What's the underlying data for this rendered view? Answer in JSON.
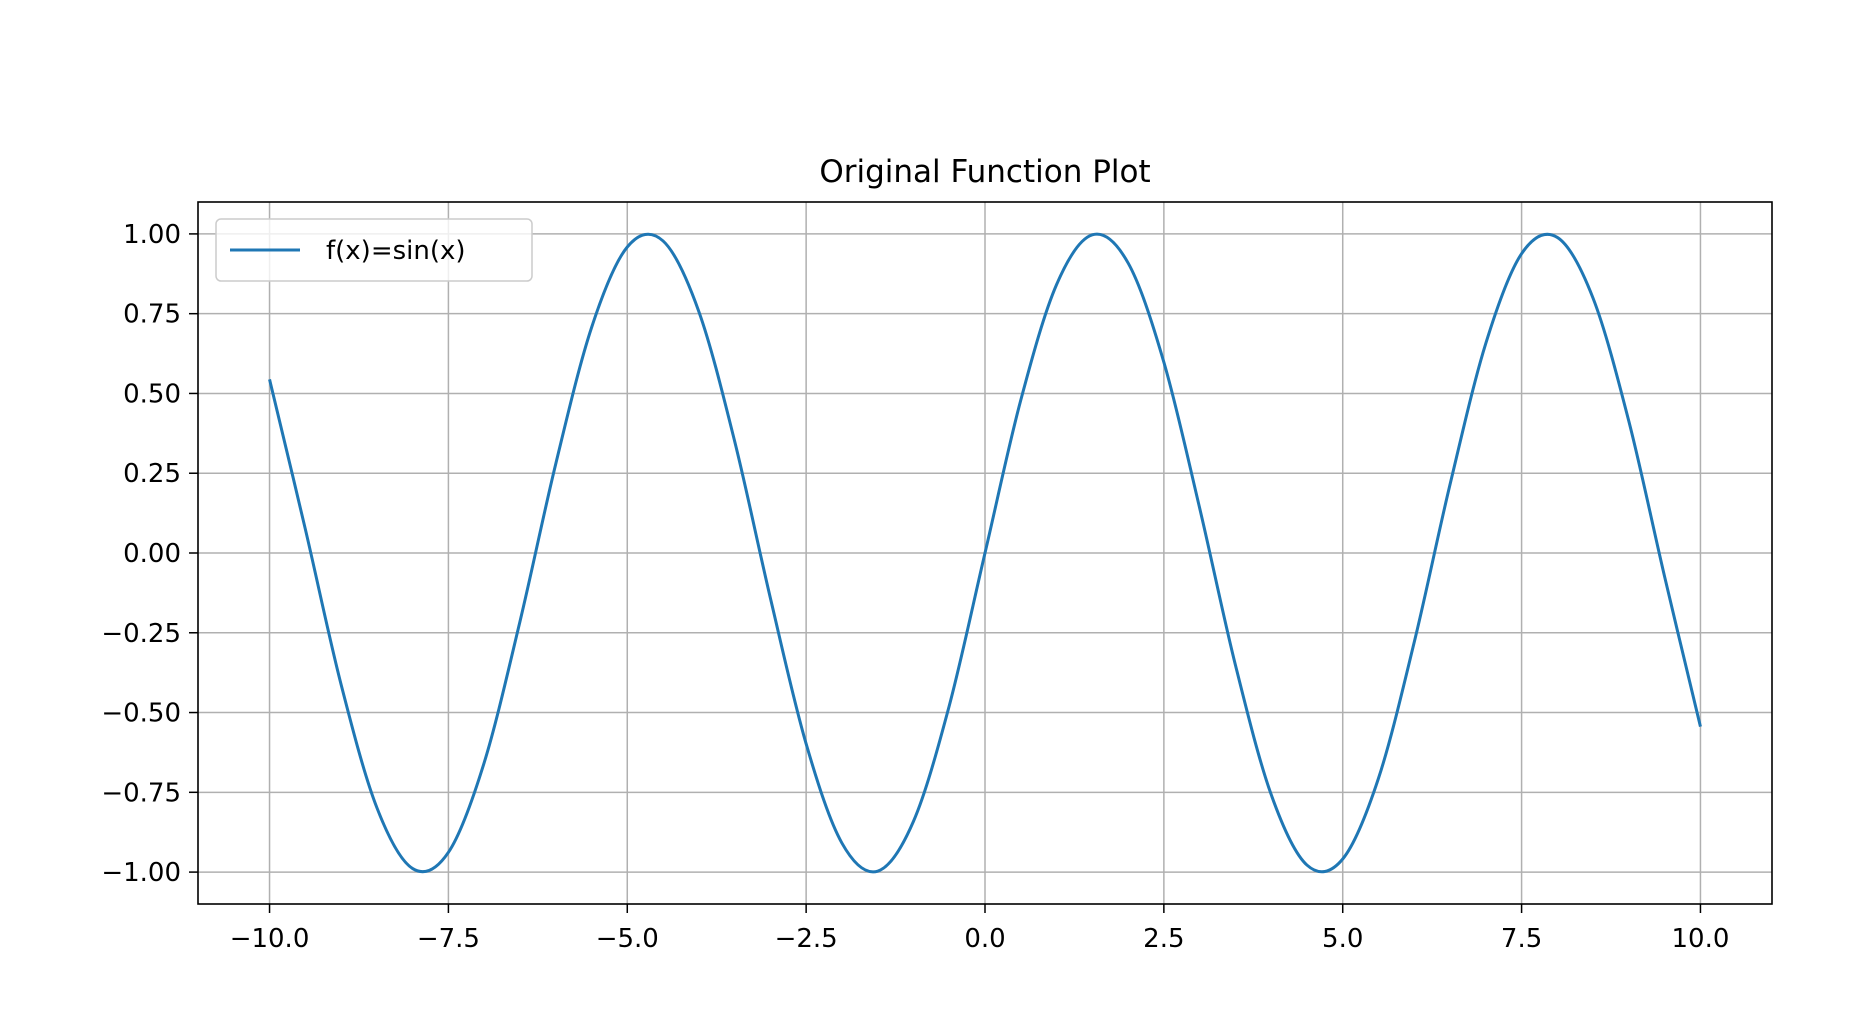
{
  "chart_data": {
    "type": "line",
    "title": "Original Function Plot",
    "xlabel": "",
    "ylabel": "",
    "xlim": [
      -11,
      11
    ],
    "ylim": [
      -1.1,
      1.1
    ],
    "x_ticks": [
      -10.0,
      -7.5,
      -5.0,
      -2.5,
      0.0,
      2.5,
      5.0,
      7.5,
      10.0
    ],
    "x_tick_labels": [
      "−10.0",
      "−7.5",
      "−5.0",
      "−2.5",
      "0.0",
      "2.5",
      "5.0",
      "7.5",
      "10.0"
    ],
    "y_ticks": [
      1.0,
      0.75,
      0.5,
      0.25,
      0.0,
      -0.25,
      -0.5,
      -0.75,
      -1.0
    ],
    "y_tick_labels": [
      "1.00",
      "0.75",
      "0.50",
      "0.25",
      "0.00",
      "−0.25",
      "−0.50",
      "−0.75",
      "−1.00"
    ],
    "grid": true,
    "legend_position": "top-left",
    "series": [
      {
        "name": "f(x)=sin(x)",
        "color": "#1f77b4",
        "x": [
          -10.0,
          -9.5,
          -9.0,
          -8.5,
          -8.0,
          -7.5,
          -7.0,
          -6.5,
          -6.0,
          -5.5,
          -5.0,
          -4.5,
          -4.0,
          -3.5,
          -3.0,
          -2.5,
          -2.0,
          -1.5,
          -1.0,
          -0.5,
          0.0,
          0.5,
          1.0,
          1.5,
          2.0,
          2.5,
          3.0,
          3.5,
          4.0,
          4.5,
          5.0,
          5.5,
          6.0,
          6.5,
          7.0,
          7.5,
          8.0,
          8.5,
          9.0,
          9.5,
          10.0
        ],
        "y": [
          0.544,
          0.075,
          -0.412,
          -0.798,
          -0.989,
          -0.938,
          -0.657,
          -0.215,
          0.279,
          0.706,
          0.959,
          0.978,
          0.757,
          0.351,
          -0.141,
          -0.598,
          -0.909,
          -0.997,
          -0.841,
          -0.479,
          0.0,
          0.479,
          0.841,
          0.997,
          0.909,
          0.598,
          0.141,
          -0.351,
          -0.757,
          -0.978,
          -0.959,
          -0.706,
          -0.279,
          0.215,
          0.657,
          0.938,
          0.989,
          0.798,
          0.412,
          -0.075,
          -0.544
        ]
      }
    ]
  }
}
